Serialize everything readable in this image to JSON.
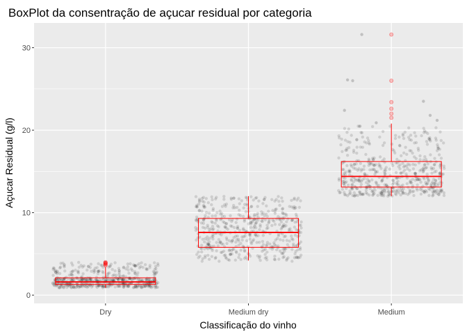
{
  "chart_data": {
    "type": "boxplot",
    "title": "BoxPlot da consentração de açucar residual por categoria",
    "xlabel": "Classificação do vinho",
    "ylabel": "Açucar Residual (g/l)",
    "categories": [
      "Dry",
      "Medium dry",
      "Medium"
    ],
    "ylim": [
      -1,
      33
    ],
    "yticks": [
      0,
      10,
      20,
      30
    ],
    "grid": true,
    "panel_background": "#ebebeb",
    "grid_color": "#ffffff",
    "point_color": "#000000",
    "box_color": "#ff0000",
    "boxes": [
      {
        "category": "Dry",
        "whisker_low": 0.9,
        "q1": 1.3,
        "median": 1.6,
        "q3": 2.1,
        "whisker_high": 3.4,
        "outliers": [
          3.6,
          3.7,
          3.8,
          3.9,
          3.9,
          4.0
        ],
        "jitter_range": [
          0.9,
          4.0
        ]
      },
      {
        "category": "Medium dry",
        "whisker_low": 4.2,
        "q1": 5.8,
        "median": 7.6,
        "q3": 9.3,
        "whisker_high": 12.0,
        "outliers": [],
        "jitter_range": [
          4.1,
          12.0
        ]
      },
      {
        "category": "Medium",
        "whisker_low": 12.0,
        "q1": 13.1,
        "median": 14.4,
        "q3": 16.2,
        "whisker_high": 20.8,
        "outliers": [
          21.5,
          22.0,
          22.6,
          23.4,
          26.0,
          31.6
        ],
        "jitter_range": [
          12.0,
          20.5
        ]
      }
    ],
    "extra_points": [
      {
        "category": "Medium",
        "values": [
          31.6,
          26.1,
          26.0,
          23.5,
          22.4,
          21.8,
          21.2,
          20.9
        ]
      }
    ]
  }
}
